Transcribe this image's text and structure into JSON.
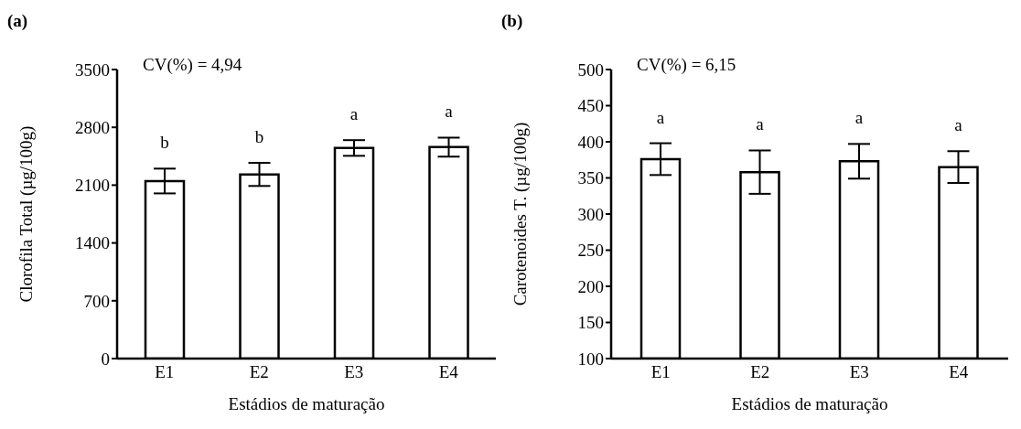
{
  "chart_data": [
    {
      "type": "bar",
      "title": "(a)",
      "xlabel": "Estádios de maturação",
      "ylabel": "Clorofila Total (µg/100g)",
      "categories": [
        "E1",
        "E2",
        "E3",
        "E4"
      ],
      "values": [
        2150,
        2230,
        2550,
        2560
      ],
      "errors": [
        150,
        140,
        95,
        115
      ],
      "color": "#ffffff",
      "ylim": [
        0,
        3500
      ],
      "yticks": [
        0,
        700,
        1400,
        2100,
        2800,
        3500
      ],
      "grid": false,
      "value_labels": [
        "b",
        "b",
        "a",
        "a"
      ],
      "annotations": [
        "CV(%) = 4,94"
      ]
    },
    {
      "type": "bar",
      "title": "(b)",
      "xlabel": "Estádios de maturação",
      "ylabel": "Carotenoides T. (µg/100g)",
      "categories": [
        "E1",
        "E2",
        "E3",
        "E4"
      ],
      "values": [
        376,
        358,
        373,
        365
      ],
      "errors": [
        22,
        30,
        24,
        22
      ],
      "color": "#ffffff",
      "ylim": [
        100,
        500
      ],
      "yticks": [
        100,
        150,
        200,
        250,
        300,
        350,
        400,
        450,
        500
      ],
      "grid": false,
      "value_labels": [
        "a",
        "a",
        "a",
        "a"
      ],
      "annotations": [
        "CV(%) = 6,15"
      ]
    }
  ]
}
